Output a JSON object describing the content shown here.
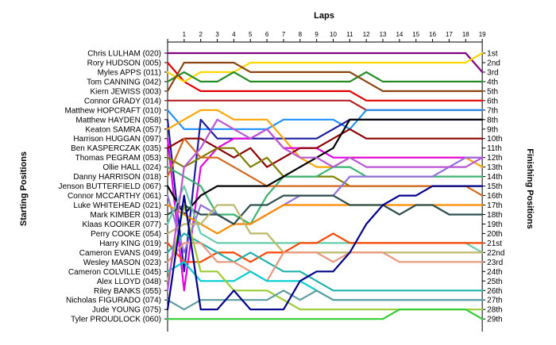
{
  "chart_data": {
    "type": "line",
    "title": "Laps",
    "ylabel_left": "Starting Positions",
    "ylabel_right": "Finishing Positions",
    "laps": [
      1,
      2,
      3,
      4,
      5,
      6,
      7,
      8,
      9,
      10,
      11,
      12,
      13,
      14,
      15,
      16,
      17,
      18,
      19
    ],
    "starting_labels": [
      "Chris LULHAM (020)",
      "Rory HUDSON (005)",
      "Myles APPS (011)",
      "Tom CANNING (042)",
      "Kiern JEWISS (003)",
      "Connor GRADY (014)",
      "Matthew HOPCRAFT (010)",
      "Matthew HAYDEN (058)",
      "Keaton SAMRA (057)",
      "Harrison HUGGAN (097)",
      "Ben KASPERCZAK (035)",
      "Thomas PEGRAM (053)",
      "Ollie HALL (024)",
      "Danny HARRISON (018)",
      "Jenson BUTTERFIELD (067)",
      "Connor MCCARTHY (061)",
      "Luke WHITEHEAD (021)",
      "Mark KIMBER (013)",
      "Klaas KOOIKER (077)",
      "Perry COOKE (054)",
      "Harry KING (019)",
      "Cameron EVANS (049)",
      "Wesley MASON (023)",
      "Cameron COLVILLE (045)",
      "Alex LLOYD (048)",
      "Riley BANKS (055)",
      "Nicholas FIGURADO (074)",
      "Jude YOUNG (075)",
      "Tyler PROUDLOCK (060)"
    ],
    "finishing_labels": [
      "1st",
      "2nd",
      "3rd",
      "4th",
      "5th",
      "6th",
      "7th",
      "8th",
      "9th",
      "10th",
      "11th",
      "12th",
      "13th",
      "14th",
      "15th",
      "16th",
      "17th",
      "18th",
      "19th",
      "20th",
      "21st",
      "22nd",
      "23rd",
      "24th",
      "25th",
      "26th",
      "27th",
      "28th",
      "29th"
    ],
    "series": [
      {
        "color": "#800080",
        "positions": [
          1,
          1,
          1,
          1,
          1,
          1,
          1,
          1,
          1,
          1,
          1,
          1,
          1,
          1,
          1,
          1,
          1,
          1,
          1,
          3
        ]
      },
      {
        "color": "#e00000",
        "positions": [
          2,
          4,
          5,
          5,
          5,
          5,
          5,
          5,
          5,
          5,
          5,
          5,
          6,
          6,
          6,
          6,
          6,
          6,
          6,
          6
        ]
      },
      {
        "color": "#ffd700",
        "positions": [
          3,
          4,
          3,
          3,
          3,
          2,
          2,
          2,
          2,
          2,
          2,
          2,
          2,
          2,
          2,
          2,
          2,
          2,
          2,
          1
        ]
      },
      {
        "color": "#228b22",
        "positions": [
          4,
          3,
          4,
          4,
          3,
          4,
          4,
          4,
          4,
          4,
          4,
          4,
          3,
          4,
          4,
          4,
          4,
          4,
          4,
          4
        ]
      },
      {
        "color": "#8b4513",
        "positions": [
          5,
          2,
          2,
          2,
          2,
          3,
          3,
          3,
          3,
          3,
          3,
          3,
          4,
          5,
          5,
          5,
          5,
          5,
          5,
          5
        ]
      },
      {
        "color": "#b22222",
        "positions": [
          6,
          6,
          6,
          6,
          6,
          6,
          6,
          6,
          6,
          6,
          6,
          6,
          7,
          7,
          7,
          7,
          7,
          7,
          7,
          7
        ]
      },
      {
        "color": "#1e90ff",
        "positions": [
          7,
          9,
          9,
          9,
          9,
          9,
          9,
          8,
          8,
          8,
          8,
          9,
          7,
          7,
          7,
          7,
          7,
          7,
          7,
          7
        ]
      },
      {
        "color": "#1c1ca0",
        "positions": [
          8,
          24,
          8,
          10,
          10,
          10,
          10,
          10,
          10,
          10,
          9,
          8,
          8,
          8,
          8,
          8,
          8,
          8,
          8,
          8
        ]
      },
      {
        "color": "#ffa500",
        "positions": [
          9,
          8,
          7,
          7,
          8,
          8,
          8,
          10,
          12,
          13,
          13,
          12,
          12,
          12,
          12,
          12,
          12,
          12,
          12,
          13
        ]
      },
      {
        "color": "#e600e6",
        "positions": [
          10,
          26,
          13,
          11,
          10,
          10,
          9,
          11,
          11,
          11,
          12,
          12,
          12,
          12,
          12,
          12,
          12,
          12,
          12,
          12
        ]
      },
      {
        "color": "#8b0000",
        "positions": [
          11,
          10,
          10,
          11,
          12,
          11,
          13,
          12,
          11,
          11,
          10,
          9,
          10,
          10,
          10,
          10,
          10,
          10,
          10,
          10
        ]
      },
      {
        "color": "#808000",
        "positions": [
          12,
          13,
          12,
          11,
          11,
          13,
          12,
          14,
          14,
          14,
          14,
          15,
          15,
          15,
          15,
          15,
          15,
          15,
          15,
          15
        ]
      },
      {
        "color": "#3cb371",
        "positions": [
          13,
          14,
          15,
          18,
          18,
          19,
          16,
          14,
          14,
          14,
          13,
          13,
          14,
          14,
          14,
          14,
          14,
          14,
          14,
          14
        ]
      },
      {
        "color": "#d2691e",
        "positions": [
          14,
          10,
          12,
          12,
          13,
          14,
          15,
          15,
          15,
          15,
          15,
          15,
          15,
          15,
          15,
          15,
          15,
          15,
          15,
          16
        ]
      },
      {
        "color": "#000000",
        "positions": [
          15,
          18,
          16,
          15,
          15,
          15,
          15,
          14,
          13,
          12,
          11,
          8,
          8,
          8,
          8,
          8,
          8,
          8,
          8,
          8
        ]
      },
      {
        "color": "#9370db",
        "positions": [
          16,
          22,
          17,
          18,
          19,
          19,
          18,
          17,
          16,
          16,
          16,
          14,
          14,
          14,
          14,
          14,
          14,
          13,
          12,
          12
        ]
      },
      {
        "color": "#ff8c00",
        "positions": [
          17,
          18,
          19,
          20,
          19,
          19,
          18,
          17,
          17,
          17,
          17,
          17,
          17,
          17,
          17,
          17,
          17,
          17,
          17,
          17
        ]
      },
      {
        "color": "#2f4f4f",
        "positions": [
          18,
          17,
          18,
          18,
          19,
          17,
          17,
          16,
          16,
          16,
          16,
          17,
          17,
          17,
          18,
          17,
          17,
          18,
          18,
          18
        ]
      },
      {
        "color": "#66cdaa",
        "positions": [
          19,
          15,
          20,
          21,
          21,
          21,
          21,
          21,
          21,
          21,
          21,
          21,
          21,
          21,
          21,
          21,
          21,
          21,
          21,
          22
        ]
      },
      {
        "color": "#bdb76b",
        "positions": [
          20,
          19,
          19,
          17,
          17,
          20,
          20,
          22,
          22,
          22,
          22,
          22,
          22,
          22,
          22,
          22,
          22,
          22,
          22,
          22
        ]
      },
      {
        "color": "#ff4500",
        "positions": [
          21,
          23,
          23,
          22,
          22,
          23,
          22,
          22,
          21,
          21,
          20,
          21,
          21,
          21,
          21,
          21,
          21,
          21,
          21,
          21
        ]
      },
      {
        "color": "#20b2aa",
        "positions": [
          22,
          20,
          21,
          22,
          23,
          22,
          23,
          24,
          24,
          25,
          26,
          26,
          26,
          26,
          26,
          26,
          26,
          26,
          26,
          26
        ]
      },
      {
        "color": "#e9967a",
        "positions": [
          23,
          21,
          21,
          23,
          23,
          24,
          25,
          22,
          22,
          22,
          23,
          22,
          22,
          22,
          23,
          23,
          23,
          23,
          23,
          23
        ]
      },
      {
        "color": "#00ced1",
        "positions": [
          24,
          23,
          25,
          25,
          25,
          24,
          25,
          25,
          25,
          26,
          27,
          27,
          27,
          27,
          27,
          27,
          27,
          27,
          27,
          27
        ]
      },
      {
        "color": "#9acd32",
        "positions": [
          25,
          17,
          24,
          24,
          26,
          26,
          26,
          27,
          28,
          28,
          28,
          28,
          28,
          28,
          28,
          28,
          28,
          28,
          28,
          28
        ]
      },
      {
        "color": "#ba55d3",
        "positions": [
          26,
          13,
          11,
          8,
          9,
          10,
          9,
          11,
          12,
          12,
          13,
          12,
          13,
          13,
          13,
          13,
          13,
          13,
          13,
          12
        ]
      },
      {
        "color": "#5f9ea0",
        "positions": [
          27,
          28,
          27,
          27,
          27,
          27,
          27,
          26,
          27,
          26,
          27,
          27,
          27,
          27,
          27,
          27,
          27,
          27,
          27,
          27
        ]
      },
      {
        "color": "#00008b",
        "positions": [
          28,
          16,
          28,
          28,
          26,
          28,
          28,
          28,
          25,
          24,
          24,
          22,
          19,
          17,
          16,
          16,
          15,
          15,
          15,
          15
        ]
      },
      {
        "color": "#32cd32",
        "positions": [
          29,
          29,
          29,
          29,
          29,
          29,
          29,
          29,
          29,
          29,
          29,
          29,
          29,
          29,
          28,
          28,
          28,
          28,
          28,
          29
        ]
      }
    ]
  }
}
